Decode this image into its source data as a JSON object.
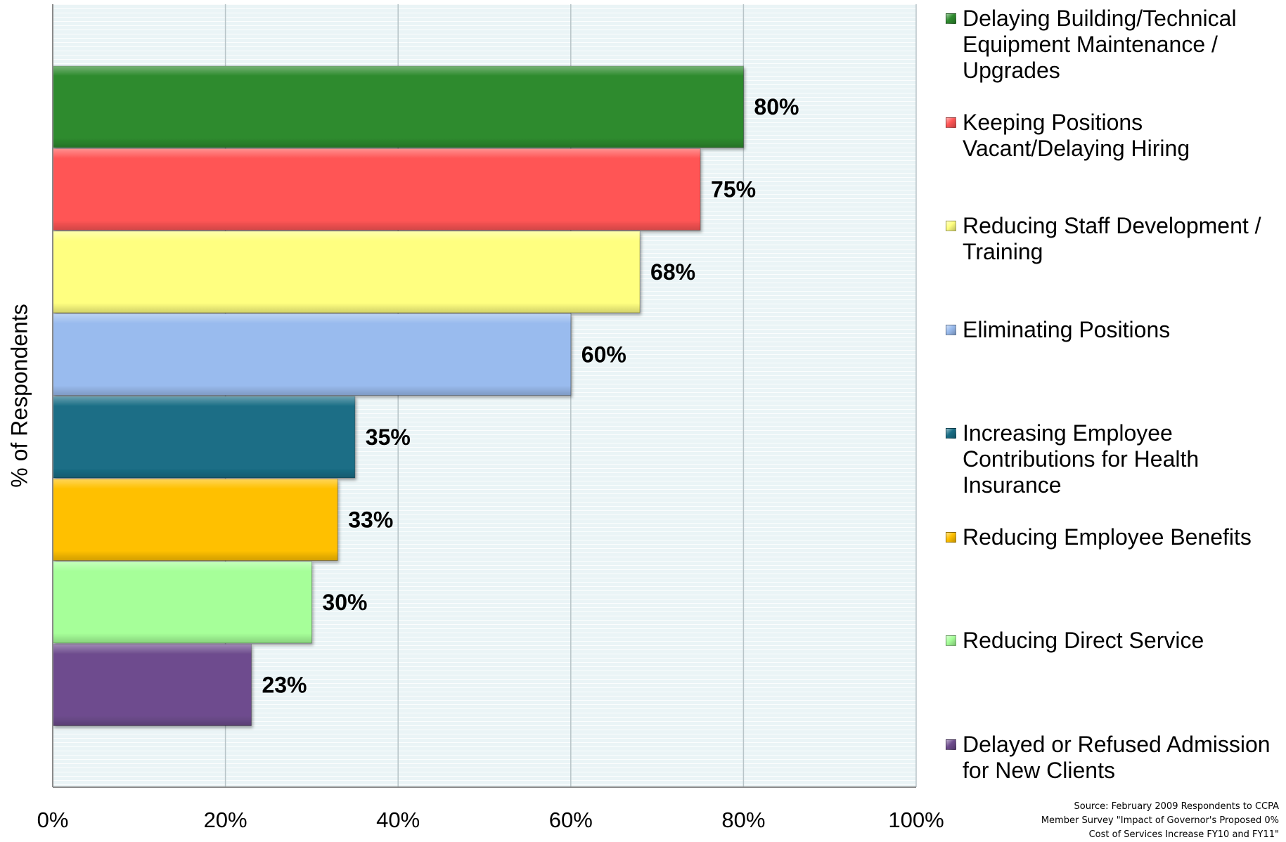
{
  "chart_data": {
    "type": "bar",
    "orientation": "horizontal",
    "categories": [
      "Delaying Building/Technical Equipment Maintenance / Upgrades",
      "Keeping Positions Vacant/Delaying Hiring",
      "Reducing Staff Development / Training",
      "Eliminating Positions",
      "Increasing Employee Contributions for Health Insurance",
      "Reducing Employee Benefits",
      "Reducing Direct Service",
      "Delayed or Refused Admission for New Clients"
    ],
    "values": [
      80,
      75,
      68,
      60,
      35,
      33,
      30,
      23
    ],
    "value_labels": [
      "80%",
      "75%",
      "68%",
      "60%",
      "35%",
      "33%",
      "30%",
      "23%"
    ],
    "colors": [
      "#2e8b2e",
      "#ff5555",
      "#ffff80",
      "#99bbee",
      "#1a6e86",
      "#ffc000",
      "#a6ff99",
      "#6e4c8e"
    ],
    "xlim": [
      0,
      100
    ],
    "x_ticks": [
      "0%",
      "20%",
      "40%",
      "60%",
      "80%",
      "100%"
    ],
    "ylabel": "% of Respondents",
    "grid": true,
    "legend_position": "right",
    "plot_background": "#eaf4f6"
  },
  "source_note": [
    "Source:  February 2009 Respondents to CCPA",
    "Member Survey \"Impact of Governor's Proposed 0%",
    "Cost of Services Increase FY10 and FY11\""
  ]
}
